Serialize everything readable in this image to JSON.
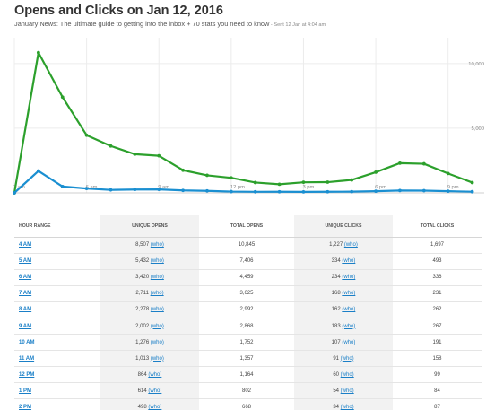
{
  "header": {
    "title": "Opens and Clicks on Jan 12, 2016",
    "subtitle": "January News: The ultimate guide to getting into the inbox + 70 stats you need to know",
    "sent": " - Sent 12 Jan at 4:04 am"
  },
  "chart_data": {
    "type": "line",
    "x_tick_labels": [
      "3 am",
      "6 am",
      "9 am",
      "12 pm",
      "3 pm",
      "6 pm",
      "9 pm"
    ],
    "y_tick_labels": [
      "10,000",
      "5,000"
    ],
    "ylim": [
      0,
      12000
    ],
    "grid": true,
    "colors": {
      "opens": "#2ca02c",
      "clicks": "#1a8fd1"
    },
    "x_hours": [
      3,
      4,
      5,
      6,
      7,
      8,
      9,
      10,
      11,
      12,
      13,
      14,
      15,
      16,
      17,
      18,
      19,
      20,
      21,
      22
    ],
    "series": [
      {
        "key": "opens",
        "values": [
          0,
          10845,
          7406,
          4459,
          3625,
          2992,
          2868,
          1752,
          1357,
          1164,
          802,
          668,
          820,
          830,
          1000,
          1600,
          2300,
          2250,
          1500,
          800
        ]
      },
      {
        "key": "clicks",
        "values": [
          0,
          1697,
          493,
          336,
          231,
          262,
          267,
          191,
          158,
          99,
          84,
          87,
          80,
          85,
          95,
          130,
          180,
          175,
          130,
          90
        ]
      }
    ]
  },
  "table": {
    "headers": [
      "HOUR RANGE",
      "UNIQUE OPENS",
      "TOTAL OPENS",
      "UNIQUE CLICKS",
      "TOTAL CLICKS"
    ],
    "who_label": "(who)",
    "rows": [
      {
        "hour": "4 AM",
        "unique_opens": "8,507",
        "total_opens": "10,845",
        "unique_clicks": "1,227",
        "total_clicks": "1,697"
      },
      {
        "hour": "5 AM",
        "unique_opens": "5,432",
        "total_opens": "7,406",
        "unique_clicks": "334",
        "total_clicks": "493"
      },
      {
        "hour": "6 AM",
        "unique_opens": "3,420",
        "total_opens": "4,459",
        "unique_clicks": "234",
        "total_clicks": "336"
      },
      {
        "hour": "7 AM",
        "unique_opens": "2,711",
        "total_opens": "3,625",
        "unique_clicks": "168",
        "total_clicks": "231"
      },
      {
        "hour": "8 AM",
        "unique_opens": "2,278",
        "total_opens": "2,992",
        "unique_clicks": "162",
        "total_clicks": "262"
      },
      {
        "hour": "9 AM",
        "unique_opens": "2,002",
        "total_opens": "2,868",
        "unique_clicks": "183",
        "total_clicks": "267"
      },
      {
        "hour": "10 AM",
        "unique_opens": "1,276",
        "total_opens": "1,752",
        "unique_clicks": "107",
        "total_clicks": "191"
      },
      {
        "hour": "11 AM",
        "unique_opens": "1,013",
        "total_opens": "1,357",
        "unique_clicks": "91",
        "total_clicks": "158"
      },
      {
        "hour": "12 PM",
        "unique_opens": "864",
        "total_opens": "1,164",
        "unique_clicks": "60",
        "total_clicks": "99"
      },
      {
        "hour": "1 PM",
        "unique_opens": "614",
        "total_opens": "802",
        "unique_clicks": "54",
        "total_clicks": "84"
      },
      {
        "hour": "2 PM",
        "unique_opens": "498",
        "total_opens": "668",
        "unique_clicks": "34",
        "total_clicks": "87"
      }
    ]
  }
}
